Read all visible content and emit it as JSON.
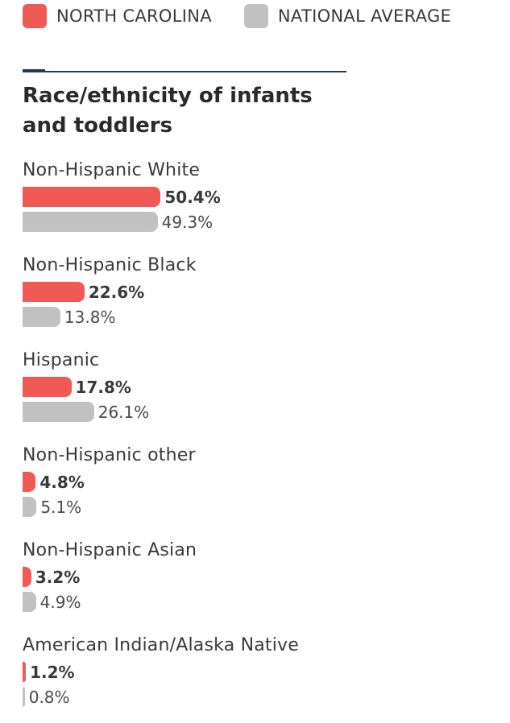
{
  "legend": {
    "items": [
      {
        "label": "NORTH CAROLINA",
        "color": "#f05a55"
      },
      {
        "label": "NATIONAL AVERAGE",
        "color": "#c1c1c1"
      }
    ]
  },
  "title": "Race/ethnicity of infants and toddlers",
  "chart_data": {
    "type": "bar",
    "orientation": "horizontal",
    "title": "Race/ethnicity of infants and toddlers",
    "categories": [
      "Non-Hispanic White",
      "Non-Hispanic Black",
      "Hispanic",
      "Non-Hispanic other",
      "Non-Hispanic Asian",
      "American Indian/Alaska Native"
    ],
    "series": [
      {
        "name": "NORTH CAROLINA",
        "color": "#f05a55",
        "values": [
          50.4,
          22.6,
          17.8,
          4.8,
          3.2,
          1.2
        ],
        "labels": [
          "50.4%",
          "22.6%",
          "17.8%",
          "4.8%",
          "3.2%",
          "1.2%"
        ]
      },
      {
        "name": "NATIONAL AVERAGE",
        "color": "#c1c1c1",
        "values": [
          49.3,
          13.8,
          26.1,
          5.1,
          4.9,
          0.8
        ],
        "labels": [
          "49.3%",
          "13.8%",
          "26.1%",
          "5.1%",
          "4.9%",
          "0.8%"
        ]
      }
    ],
    "unit": "%",
    "xlim": [
      0,
      100
    ],
    "legend_position": "top-left",
    "grid": false
  }
}
